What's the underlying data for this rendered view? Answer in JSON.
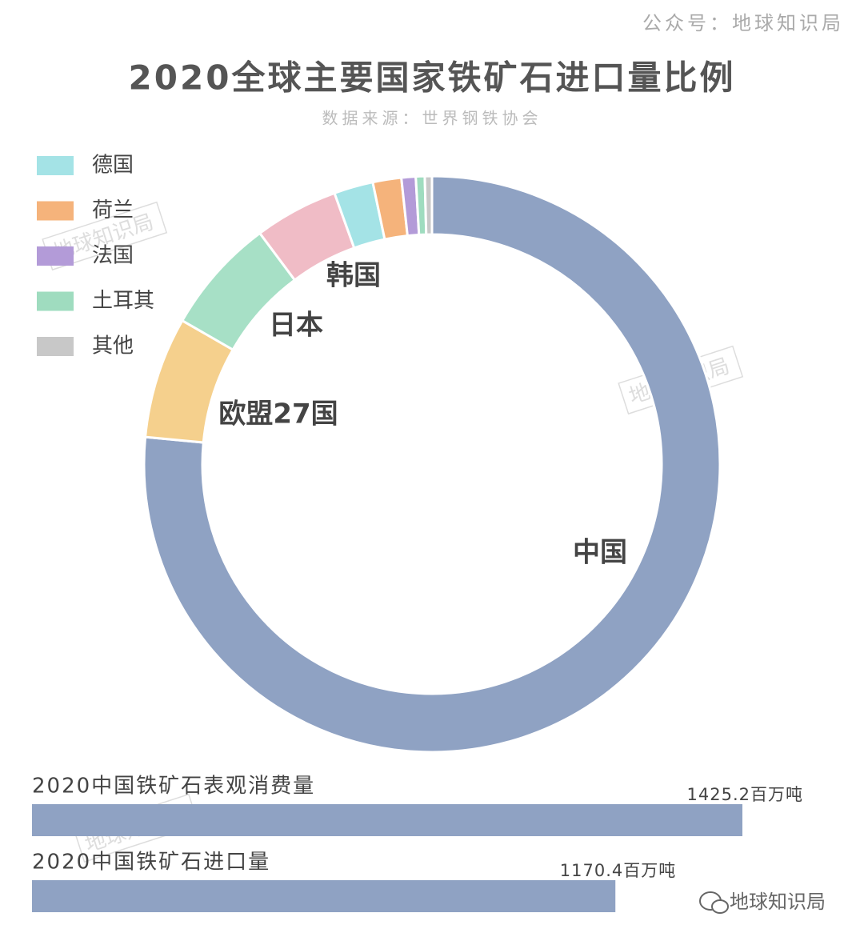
{
  "header": {
    "account": "公众号：地球知识局",
    "watermark": "地球知识局"
  },
  "chart_data": [
    {
      "type": "donut",
      "title": "2020全球主要国家铁矿石进口量比例",
      "subtitle": "数据来源：世界钢铁协会",
      "categories": [
        "中国",
        "欧盟27国",
        "日本",
        "韩国",
        "德国",
        "荷兰",
        "法国",
        "土耳其",
        "其他"
      ],
      "values": [
        76.5,
        6.8,
        6.5,
        4.7,
        2.2,
        1.6,
        0.8,
        0.5,
        0.4
      ],
      "colors": [
        "#8fa2c3",
        "#f5d08d",
        "#a7e0c6",
        "#f0bcc6",
        "#a4e3e6",
        "#f5b37b",
        "#b39bd8",
        "#9fdcbf",
        "#c8c8c8"
      ]
    },
    {
      "type": "hbar",
      "categories": [
        "2020中国铁矿石表观消费量",
        "2020中国铁矿石进口量"
      ],
      "values": [
        1425.2,
        1170.4
      ],
      "value_labels": [
        "1425.2百万吨",
        "1170.4百万吨"
      ],
      "color": "#8fa2c3"
    }
  ]
}
